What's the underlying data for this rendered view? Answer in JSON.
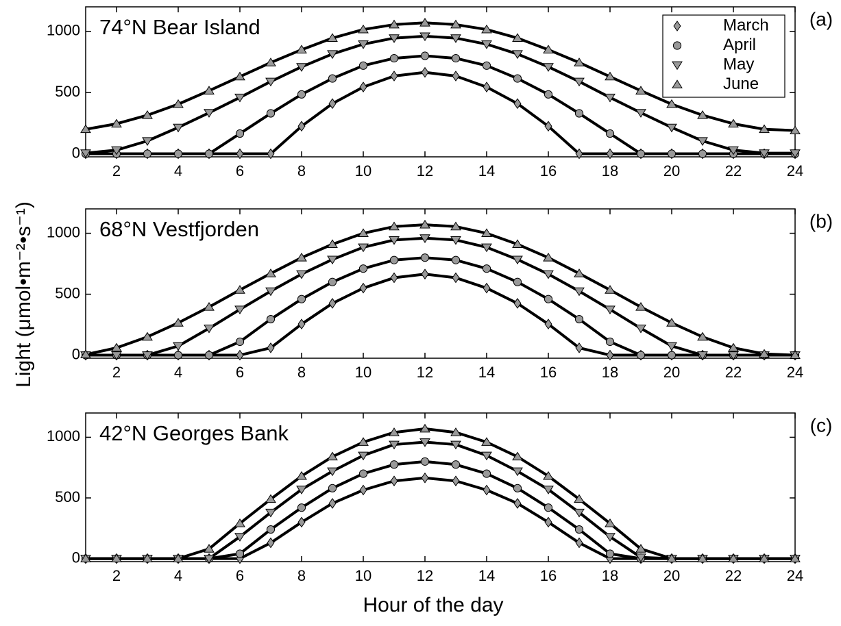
{
  "ylabel": "Light (μmol•m⁻²•s⁻¹)",
  "xlabel": "Hour of the day",
  "chart_data": [
    {
      "type": "line",
      "title": "74°N Bear Island",
      "panel_label": "(a)",
      "legend": "upper right",
      "x": [
        1,
        2,
        3,
        4,
        5,
        6,
        7,
        8,
        9,
        10,
        11,
        12,
        13,
        14,
        15,
        16,
        17,
        18,
        19,
        20,
        21,
        22,
        23,
        24
      ],
      "xlim": [
        1,
        24
      ],
      "ylim": [
        -25,
        1200
      ],
      "xticks": [
        2,
        4,
        6,
        8,
        10,
        12,
        14,
        16,
        18,
        20,
        22,
        24
      ],
      "yticks": [
        0,
        500,
        1000
      ],
      "series": [
        {
          "name": "March",
          "marker": "diamond",
          "color": "#000000",
          "marker_color": "#999999",
          "values": [
            0,
            0,
            0,
            0,
            0,
            0,
            0,
            225,
            410,
            545,
            635,
            665,
            635,
            545,
            410,
            225,
            0,
            0,
            0,
            0,
            0,
            0,
            0,
            0
          ]
        },
        {
          "name": "April",
          "marker": "circle",
          "color": "#000000",
          "marker_color": "#999999",
          "values": [
            0,
            0,
            0,
            0,
            0,
            165,
            330,
            485,
            615,
            720,
            780,
            800,
            780,
            720,
            615,
            485,
            330,
            165,
            0,
            0,
            0,
            0,
            0,
            0
          ]
        },
        {
          "name": "May",
          "marker": "triangle-down",
          "color": "#000000",
          "marker_color": "#999999",
          "values": [
            5,
            30,
            105,
            215,
            335,
            460,
            590,
            710,
            815,
            895,
            945,
            960,
            945,
            895,
            815,
            710,
            590,
            460,
            335,
            215,
            105,
            30,
            5,
            5
          ]
        },
        {
          "name": "June",
          "marker": "triangle-up",
          "color": "#000000",
          "marker_color": "#999999",
          "values": [
            200,
            245,
            315,
            405,
            515,
            630,
            745,
            850,
            945,
            1015,
            1055,
            1070,
            1055,
            1015,
            945,
            850,
            745,
            630,
            515,
            405,
            315,
            245,
            200,
            190
          ]
        }
      ]
    },
    {
      "type": "line",
      "title": "68°N Vestfjorden",
      "panel_label": "(b)",
      "x": [
        1,
        2,
        3,
        4,
        5,
        6,
        7,
        8,
        9,
        10,
        11,
        12,
        13,
        14,
        15,
        16,
        17,
        18,
        19,
        20,
        21,
        22,
        23,
        24
      ],
      "xlim": [
        1,
        24
      ],
      "ylim": [
        -25,
        1200
      ],
      "xticks": [
        2,
        4,
        6,
        8,
        10,
        12,
        14,
        16,
        18,
        20,
        22,
        24
      ],
      "yticks": [
        0,
        500,
        1000
      ],
      "series": [
        {
          "name": "March",
          "marker": "diamond",
          "color": "#000000",
          "marker_color": "#999999",
          "values": [
            0,
            0,
            0,
            0,
            0,
            0,
            60,
            255,
            425,
            550,
            635,
            665,
            635,
            550,
            425,
            255,
            60,
            0,
            0,
            0,
            0,
            0,
            0,
            0
          ]
        },
        {
          "name": "April",
          "marker": "circle",
          "color": "#000000",
          "marker_color": "#999999",
          "values": [
            0,
            0,
            0,
            0,
            0,
            110,
            295,
            460,
            600,
            710,
            780,
            800,
            780,
            710,
            600,
            460,
            295,
            110,
            0,
            0,
            0,
            0,
            0,
            0
          ]
        },
        {
          "name": "May",
          "marker": "triangle-down",
          "color": "#000000",
          "marker_color": "#999999",
          "values": [
            0,
            0,
            0,
            75,
            220,
            375,
            525,
            665,
            785,
            885,
            945,
            960,
            945,
            885,
            785,
            665,
            525,
            375,
            220,
            75,
            0,
            0,
            0,
            0
          ]
        },
        {
          "name": "June",
          "marker": "triangle-up",
          "color": "#000000",
          "marker_color": "#999999",
          "values": [
            5,
            60,
            150,
            265,
            395,
            535,
            670,
            800,
            910,
            1000,
            1055,
            1070,
            1055,
            1000,
            910,
            800,
            670,
            535,
            395,
            265,
            150,
            60,
            10,
            0
          ]
        }
      ]
    },
    {
      "type": "line",
      "title": "42°N Georges Bank",
      "panel_label": "(c)",
      "x": [
        1,
        2,
        3,
        4,
        5,
        6,
        7,
        8,
        9,
        10,
        11,
        12,
        13,
        14,
        15,
        16,
        17,
        18,
        19,
        20,
        21,
        22,
        23,
        24
      ],
      "xlim": [
        1,
        24
      ],
      "ylim": [
        -25,
        1200
      ],
      "xticks": [
        2,
        4,
        6,
        8,
        10,
        12,
        14,
        16,
        18,
        20,
        22,
        24
      ],
      "yticks": [
        0,
        500,
        1000
      ],
      "series": [
        {
          "name": "March",
          "marker": "diamond",
          "color": "#000000",
          "marker_color": "#999999",
          "values": [
            0,
            0,
            0,
            0,
            0,
            0,
            130,
            300,
            455,
            565,
            640,
            665,
            640,
            565,
            455,
            300,
            130,
            0,
            0,
            0,
            0,
            0,
            0,
            0
          ]
        },
        {
          "name": "April",
          "marker": "circle",
          "color": "#000000",
          "marker_color": "#999999",
          "values": [
            0,
            0,
            0,
            0,
            0,
            40,
            240,
            420,
            580,
            700,
            775,
            800,
            775,
            700,
            580,
            420,
            240,
            40,
            0,
            0,
            0,
            0,
            0,
            0
          ]
        },
        {
          "name": "May",
          "marker": "triangle-down",
          "color": "#000000",
          "marker_color": "#999999",
          "values": [
            0,
            0,
            0,
            0,
            0,
            180,
            380,
            570,
            720,
            850,
            940,
            960,
            940,
            850,
            720,
            570,
            380,
            180,
            10,
            0,
            0,
            0,
            0,
            0
          ]
        },
        {
          "name": "June",
          "marker": "triangle-up",
          "color": "#000000",
          "marker_color": "#999999",
          "values": [
            0,
            0,
            0,
            0,
            80,
            290,
            490,
            680,
            840,
            960,
            1040,
            1070,
            1040,
            960,
            840,
            680,
            490,
            290,
            80,
            0,
            0,
            0,
            0,
            0
          ]
        }
      ]
    }
  ]
}
